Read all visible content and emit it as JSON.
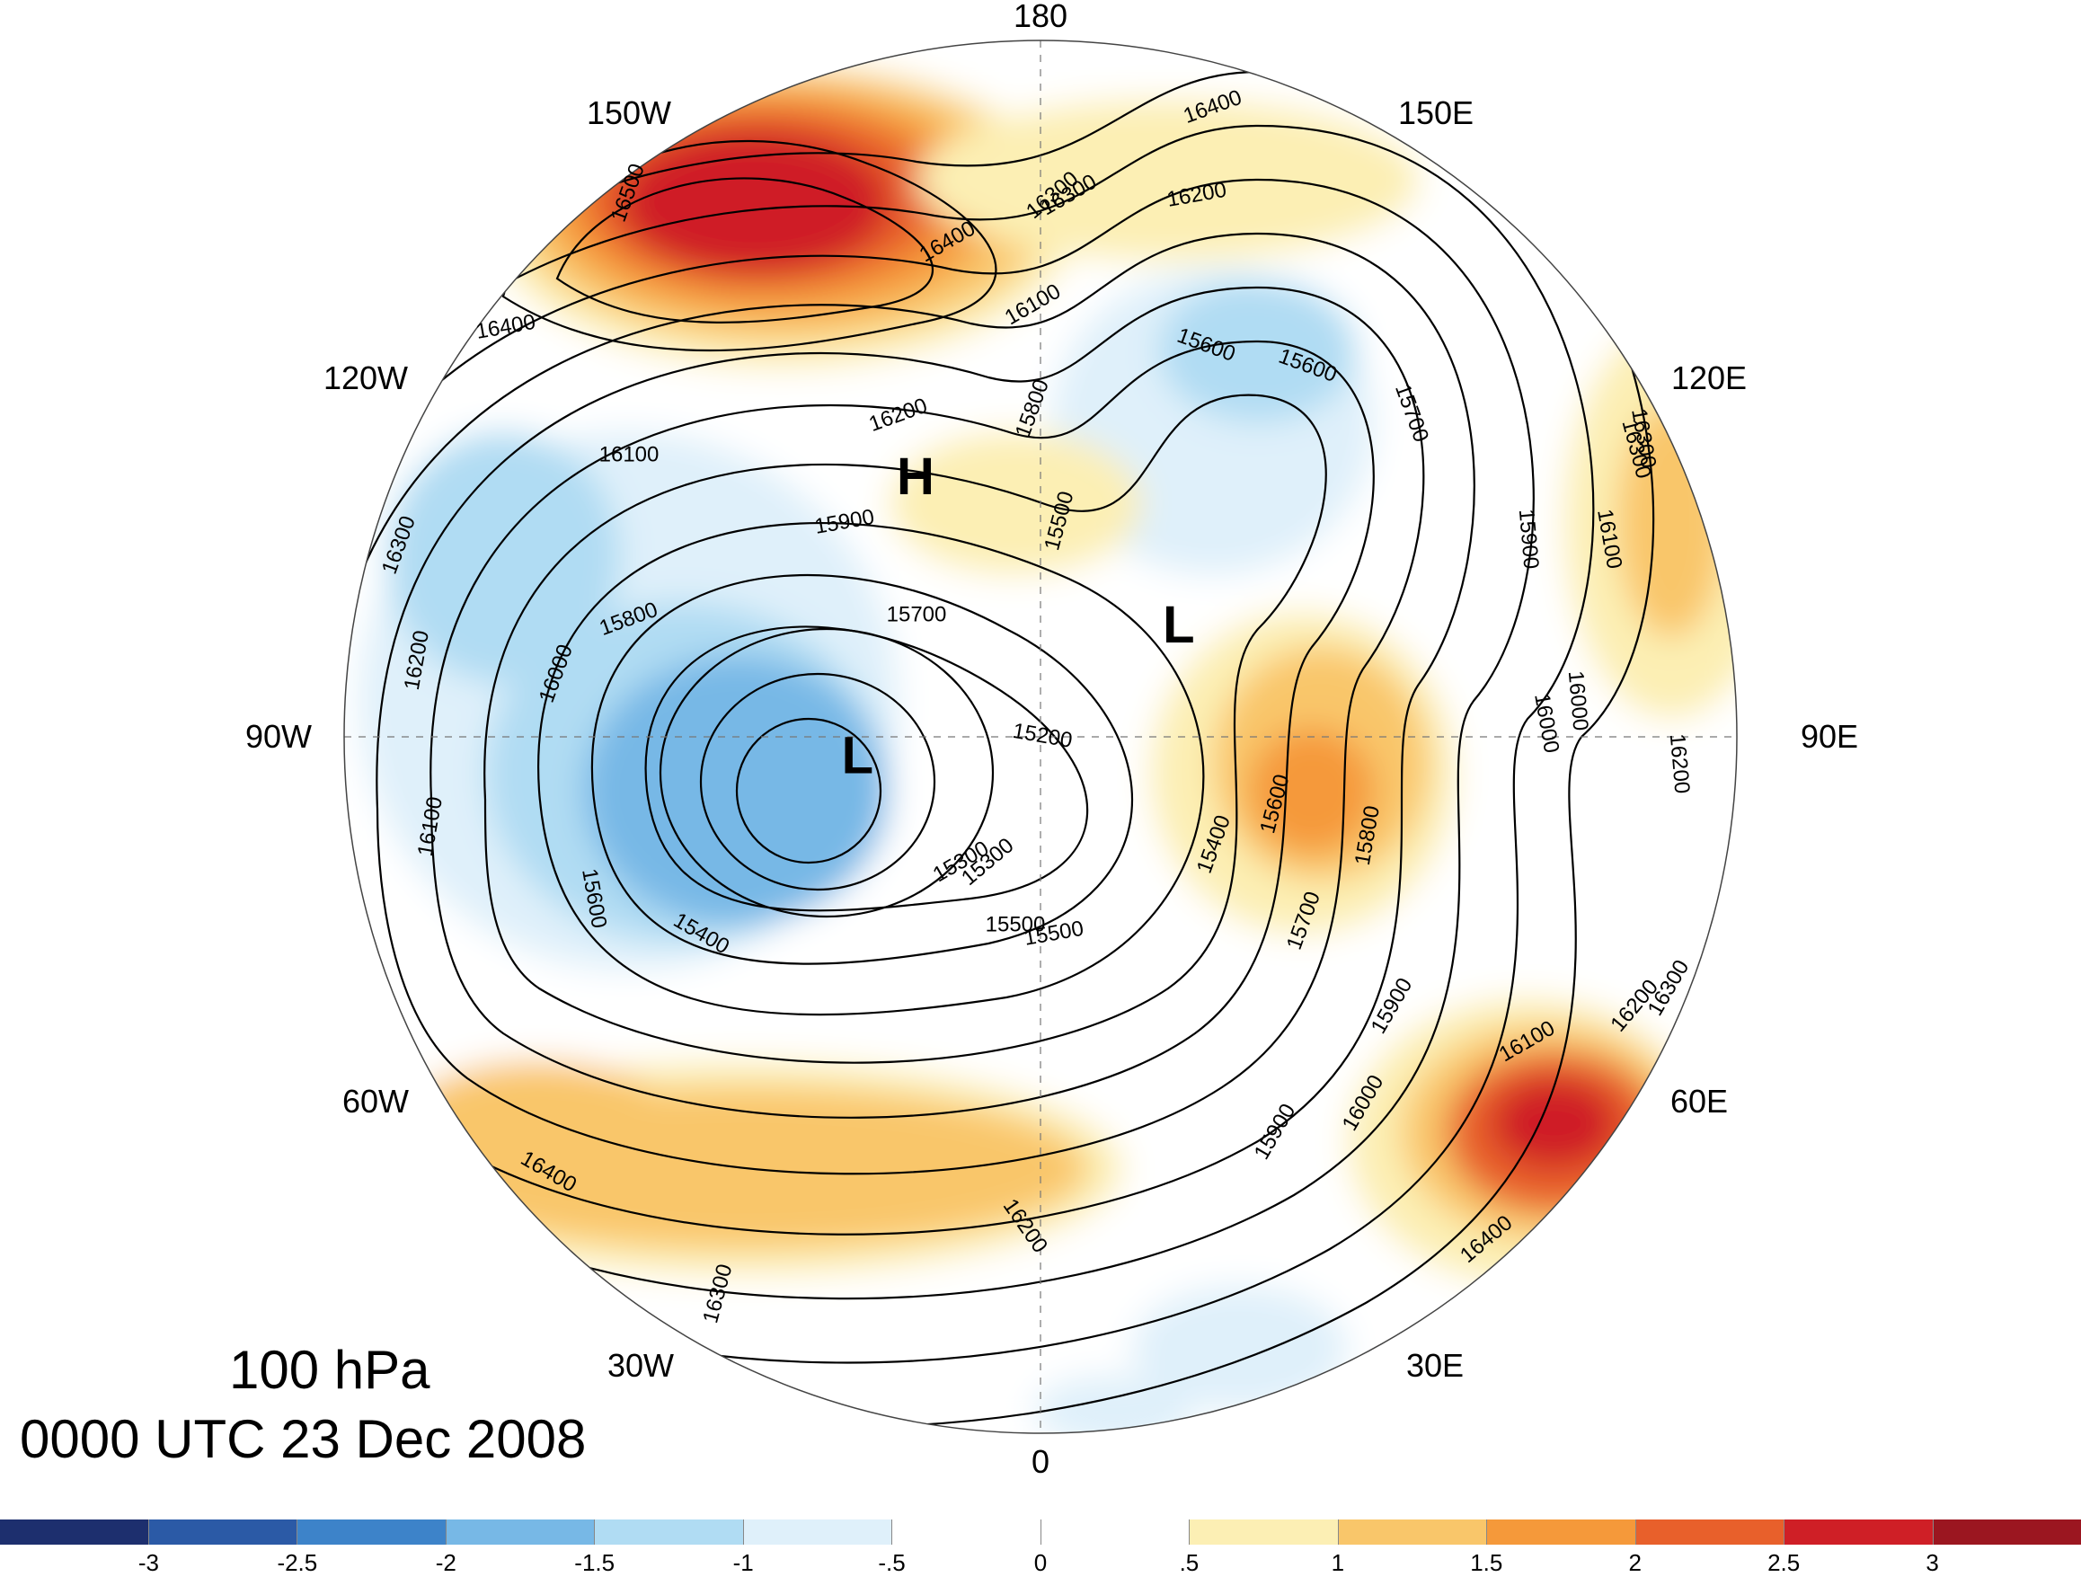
{
  "longitude_labels": [
    {
      "text": "180"
    },
    {
      "text": "150E"
    },
    {
      "text": "120E"
    },
    {
      "text": "90E"
    },
    {
      "text": "60E"
    },
    {
      "text": "30E"
    },
    {
      "text": "0"
    },
    {
      "text": "30W"
    },
    {
      "text": "60W"
    },
    {
      "text": "90W"
    },
    {
      "text": "120W"
    },
    {
      "text": "150W"
    }
  ],
  "pressure_level": "100 hPa",
  "valid_time": "0000 UTC 23 Dec 2008",
  "centers": [
    {
      "text": "H",
      "lon_deg": -154,
      "lat_deg": 58
    },
    {
      "text": "L",
      "lon_deg": 128,
      "lat_deg": 70
    },
    {
      "text": "L",
      "lon_deg": -83,
      "lat_deg": 69
    }
  ],
  "contour_labels": [
    {
      "text": "16400"
    },
    {
      "text": "16300"
    },
    {
      "text": "16200"
    },
    {
      "text": "16100"
    },
    {
      "text": "15800"
    },
    {
      "text": "15600"
    },
    {
      "text": "15700"
    },
    {
      "text": "15500"
    },
    {
      "text": "15900"
    },
    {
      "text": "16100"
    },
    {
      "text": "16300"
    },
    {
      "text": "16200"
    },
    {
      "text": "16000"
    },
    {
      "text": "15200"
    },
    {
      "text": "15300"
    },
    {
      "text": "15400"
    },
    {
      "text": "15600"
    },
    {
      "text": "15800"
    },
    {
      "text": "15700"
    },
    {
      "text": "15900"
    },
    {
      "text": "16000"
    },
    {
      "text": "16100"
    },
    {
      "text": "16400"
    },
    {
      "text": "16300"
    },
    {
      "text": "16500"
    },
    {
      "text": "16400"
    },
    {
      "text": "16200"
    },
    {
      "text": "16300"
    },
    {
      "text": "16100"
    },
    {
      "text": "16000"
    },
    {
      "text": "15900"
    },
    {
      "text": "16200"
    },
    {
      "text": "16100"
    },
    {
      "text": "15900"
    },
    {
      "text": "15400"
    },
    {
      "text": "15500"
    },
    {
      "text": "16300"
    },
    {
      "text": "16000"
    },
    {
      "text": "16200"
    },
    {
      "text": "16300"
    },
    {
      "text": "16400"
    },
    {
      "text": "16400"
    },
    {
      "text": "16300"
    },
    {
      "text": "15600"
    },
    {
      "text": "15300"
    },
    {
      "text": "15500"
    },
    {
      "text": "15700"
    },
    {
      "text": "15800"
    },
    {
      "text": "15600"
    },
    {
      "text": "16200"
    }
  ],
  "colorbar": {
    "colors": [
      "#1d2f6e",
      "#2b5aa6",
      "#3d83c9",
      "#77b8e6",
      "#b0dcf3",
      "#dff0fa",
      "#ffffff",
      "#ffffff",
      "#fcefb4",
      "#f9c66a",
      "#f5993a",
      "#e8602b",
      "#cf1f26",
      "#9b1620"
    ],
    "tick_labels": [
      "-3",
      "-2.5",
      "-2",
      "-1.5",
      "-1",
      "-.5",
      "0",
      ".5",
      "1",
      "1.5",
      "2",
      "2.5",
      "3"
    ]
  }
}
